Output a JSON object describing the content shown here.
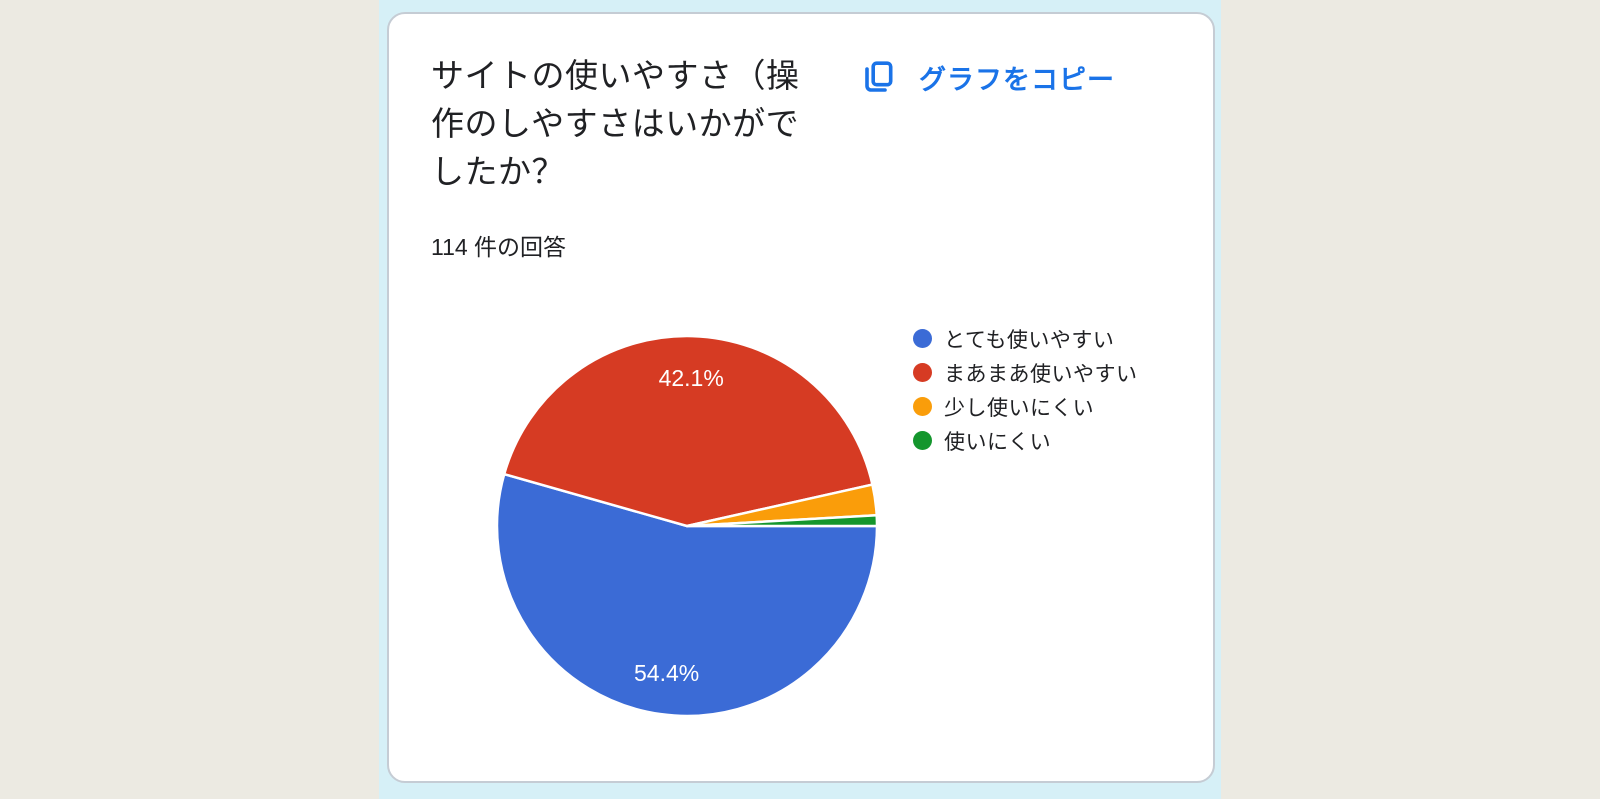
{
  "page": {
    "background_color": "#ECEAE2",
    "panel_background_color": "#D6F0F7"
  },
  "card": {
    "title": "サイトの使いやすさ（操作のしやすさはいかがでしたか？",
    "response_count": "114 件の回答",
    "copy_button": {
      "label": "グラフをコピー",
      "color": "#1A73E8",
      "icon": "copy-icon"
    }
  },
  "chart_data": {
    "type": "pie",
    "title": "サイトの使いやすさ（操作のしやすさはいかがでしたか？",
    "total_responses": 114,
    "categories": [
      "とても使いやすい",
      "まあまあ使いやすい",
      "少し使いにくい",
      "使いにくい"
    ],
    "values_percent": [
      54.4,
      42.1,
      2.6,
      0.9
    ],
    "colors": [
      "#3B6BD6",
      "#D63B23",
      "#FA9D0A",
      "#14962D"
    ],
    "slice_labels": [
      "54.4%",
      "42.1%",
      "",
      ""
    ],
    "slice_label_color": "#FFFFFF",
    "start_angle_deg": 90,
    "direction": "clockwise",
    "legend_position": "right",
    "grid": false
  }
}
